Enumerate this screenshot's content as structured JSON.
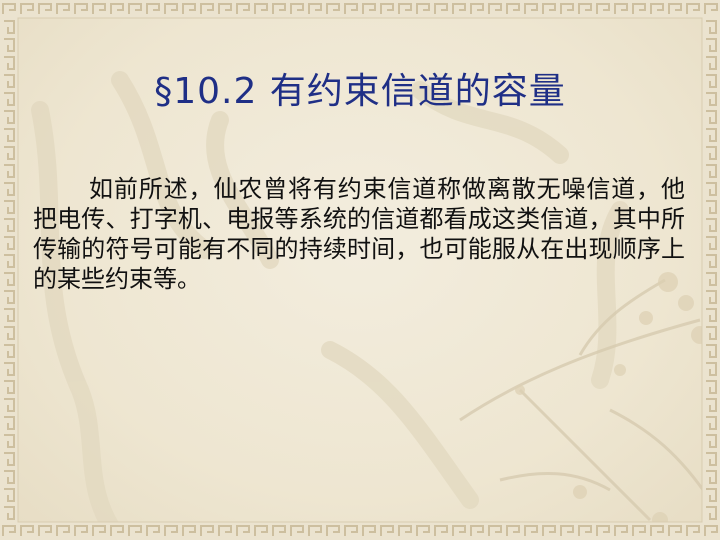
{
  "slide": {
    "title": "§10.2 有约束信道的容量",
    "paragraph": "如前所述，仙农曾将有约束信道称做离散无噪信道，他把电传、打字机、电报等系统的信道都看成这类信道，其中所传输的符号可能有不同的持续时间，也可能服从在出现顺序上的某些约束等。"
  },
  "theme": {
    "background": "#efe8d4",
    "title_color": "#1f2f86",
    "text_color": "#111111",
    "border_color": "#c9bf9f"
  }
}
